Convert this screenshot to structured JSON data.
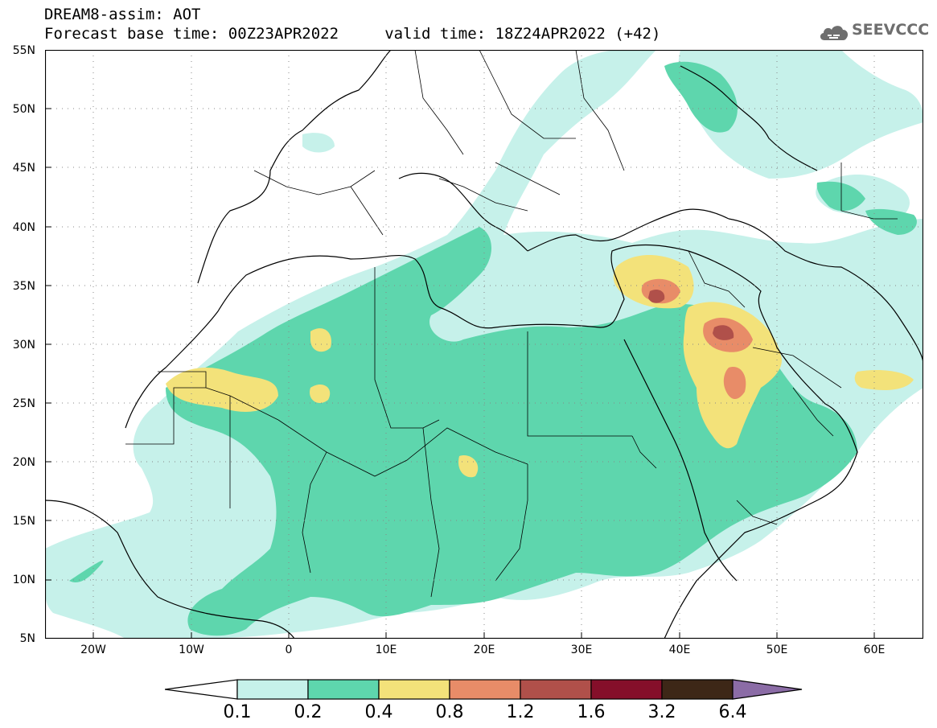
{
  "header": {
    "title_line1": "DREAM8-assim: AOT",
    "title_line2": "Forecast base time: 00Z23APR2022     valid time: 18Z24APR2022 (+42)",
    "logo_text": "SEEVCCC"
  },
  "map": {
    "lat_labels": [
      "55N",
      "50N",
      "45N",
      "40N",
      "35N",
      "30N",
      "25N",
      "20N",
      "15N",
      "10N",
      "5N"
    ],
    "lon_labels": [
      "20W",
      "10W",
      "0",
      "10E",
      "20E",
      "30E",
      "40E",
      "50E",
      "60E"
    ],
    "field": "Aerosol optical thickness (dust)"
  },
  "colorbar": {
    "labels": [
      "0.1",
      "0.2",
      "0.4",
      "0.8",
      "1.2",
      "1.6",
      "3.2",
      "6.4"
    ],
    "colors": [
      "#ffffff",
      "#c6f1ea",
      "#5ed6ad",
      "#f3e27a",
      "#e88c68",
      "#b0504a",
      "#850f2a",
      "#3d2717",
      "#8b6ca6"
    ]
  }
}
